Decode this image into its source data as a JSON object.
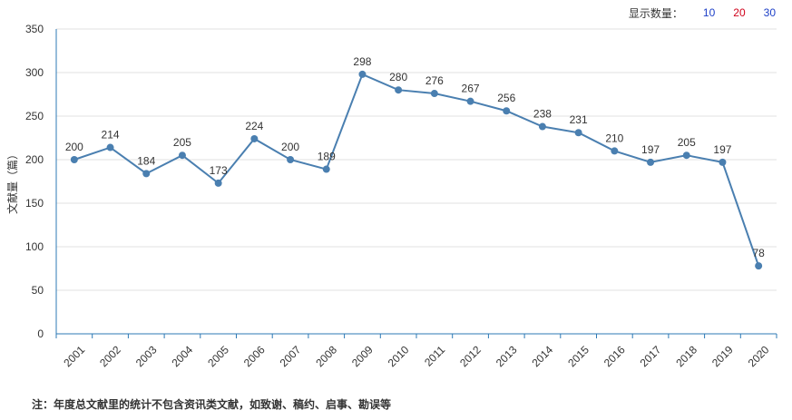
{
  "controls": {
    "label": "显示数量：",
    "options": [
      {
        "label": "10",
        "color": "#1e40c8"
      },
      {
        "label": "20",
        "color": "#d0021b"
      },
      {
        "label": "30",
        "color": "#1e40c8"
      }
    ]
  },
  "note": "注：年度总文献里的统计不包含资讯类文献，如致谢、稿约、启事、勘误等",
  "chart_data": {
    "type": "line",
    "title": "",
    "xlabel": "",
    "ylabel": "文献量（篇）",
    "x": [
      "2001",
      "2002",
      "2003",
      "2004",
      "2005",
      "2006",
      "2007",
      "2008",
      "2009",
      "2010",
      "2011",
      "2012",
      "2013",
      "2014",
      "2015",
      "2016",
      "2017",
      "2018",
      "2019",
      "2020"
    ],
    "values": [
      200,
      214,
      184,
      205,
      173,
      224,
      200,
      189,
      298,
      280,
      276,
      267,
      256,
      238,
      231,
      210,
      197,
      205,
      197,
      78
    ],
    "ylim": [
      0,
      350
    ],
    "yticks": [
      0,
      50,
      100,
      150,
      200,
      250,
      300,
      350
    ],
    "grid": true,
    "color": "#4a7fb0"
  }
}
